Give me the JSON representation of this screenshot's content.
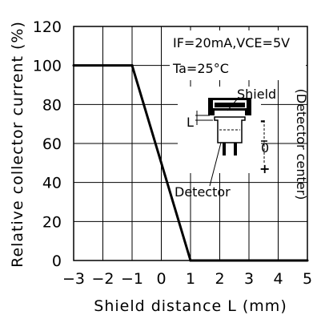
{
  "chart_data": {
    "type": "line",
    "xlabel": "Shield distance L (mm)",
    "ylabel": "Relative collector current (%)",
    "xlim": [
      -3,
      5
    ],
    "ylim": [
      0,
      120
    ],
    "x_ticks": [
      "−3",
      "−2",
      "−1",
      "0",
      "1",
      "2",
      "3",
      "4",
      "5"
    ],
    "y_ticks": [
      "0",
      "20",
      "40",
      "60",
      "80",
      "100",
      "120"
    ],
    "grid": true,
    "series": [
      {
        "x": [
          -3,
          -1,
          1,
          5
        ],
        "values": [
          100,
          100,
          0,
          0
        ]
      }
    ],
    "annotations": {
      "conditions": "IF=20mA,VCE=5V",
      "temperature": "Ta=25°C",
      "shield": "Shield",
      "detector": "Detector",
      "detector_center": "(Detector center)",
      "length_symbol": "L",
      "center_mark": "0",
      "minus_sign": "-",
      "plus_sign": "+"
    }
  }
}
